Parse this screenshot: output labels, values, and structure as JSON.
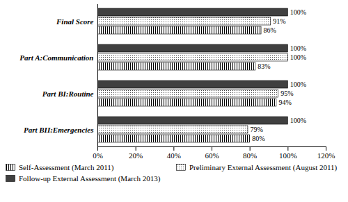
{
  "chart_data": {
    "type": "bar",
    "orientation": "horizontal",
    "categories": [
      "Final Score",
      "Part A:Communication",
      "Part BI:Routine",
      "Part BII:Emergencies"
    ],
    "series": [
      {
        "name": "Self-Assessment (March 2011)",
        "color": "#ffffff",
        "values": [
          86,
          83,
          94,
          80
        ],
        "value_labels": [
          "86%",
          "83%",
          "94%",
          "80%"
        ]
      },
      {
        "name": "Preliminary External Assessment (August 2011)",
        "color": "#ffffff",
        "values": [
          91,
          100,
          95,
          79
        ],
        "value_labels": [
          "91%",
          "100%",
          "95%",
          "79%"
        ]
      },
      {
        "name": "Follow-up External Assessment (March 2013)",
        "color": "#404040",
        "values": [
          100,
          100,
          100,
          100
        ],
        "value_labels": [
          "100%",
          "100%",
          "100%",
          "100%"
        ]
      }
    ],
    "xlim": [
      0,
      120
    ],
    "xticks": [
      {
        "value": 0,
        "label": "0%"
      },
      {
        "value": 20,
        "label": "20%"
      },
      {
        "value": 40,
        "label": "40%"
      },
      {
        "value": 60,
        "label": "60%"
      },
      {
        "value": 80,
        "label": "80%"
      },
      {
        "value": 100,
        "label": "100%"
      },
      {
        "value": 120,
        "label": "120%"
      }
    ],
    "grid": false,
    "data_labels": true,
    "legend": "bottom"
  }
}
